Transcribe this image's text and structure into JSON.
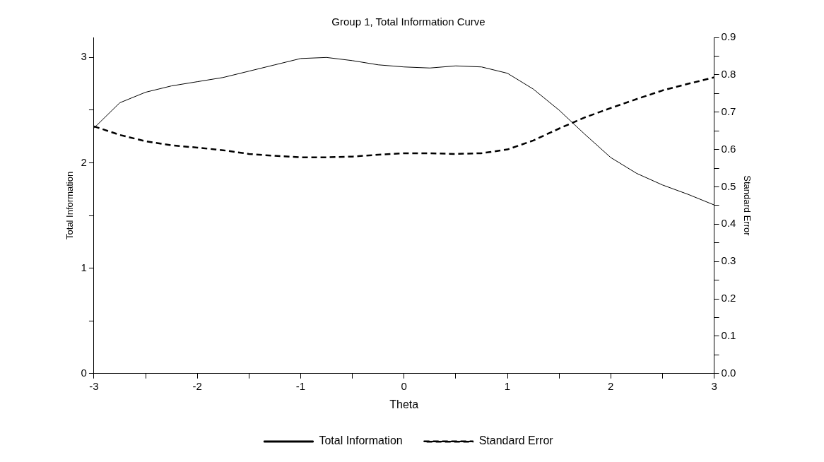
{
  "chart_data": {
    "type": "line",
    "title": "Group 1, Total Information Curve",
    "xlabel": "Theta",
    "ylabel": "Total Information",
    "y2label": "Standard Error",
    "x": [
      -3,
      -2.75,
      -2.5,
      -2.25,
      -2,
      -1.75,
      -1.5,
      -1.25,
      -1,
      -0.75,
      -0.5,
      -0.25,
      0,
      0.25,
      0.5,
      0.75,
      1,
      1.25,
      1.5,
      1.75,
      2,
      2.25,
      2.5,
      2.75,
      3
    ],
    "series": [
      {
        "name": "Total Information",
        "color": "#000000",
        "line_style": "solid",
        "values": [
          2.33,
          2.57,
          2.67,
          2.73,
          2.77,
          2.81,
          2.87,
          2.93,
          2.99,
          3.0,
          2.97,
          2.93,
          2.91,
          2.9,
          2.92,
          2.91,
          2.85,
          2.7,
          2.5,
          2.27,
          2.05,
          1.9,
          1.79,
          1.7,
          1.6
        ]
      },
      {
        "name": "Standard Error",
        "color": "#000000",
        "line_style": "dashed",
        "axis": "y2",
        "values": [
          0.662,
          0.639,
          0.622,
          0.611,
          0.605,
          0.598,
          0.588,
          0.583,
          0.579,
          0.579,
          0.581,
          0.586,
          0.59,
          0.59,
          0.588,
          0.59,
          0.6,
          0.624,
          0.656,
          0.686,
          0.711,
          0.735,
          0.758,
          0.776,
          0.793
        ]
      }
    ],
    "xlim": [
      -3,
      3
    ],
    "xticks": [
      -3,
      {
        "value": -2.5,
        "label": null
      },
      -2,
      {
        "value": -1.5,
        "label": null
      },
      -1,
      {
        "value": -0.5,
        "label": null
      },
      0,
      {
        "value": 0.5,
        "label": null
      },
      1,
      {
        "value": 1.5,
        "label": null
      },
      2,
      {
        "value": 2.5,
        "label": null
      },
      3
    ],
    "ylim": [
      0,
      3.19
    ],
    "yticks": [
      0,
      {
        "value": 0.5,
        "label": null
      },
      1,
      {
        "value": 1.5,
        "label": null
      },
      2,
      {
        "value": 2.5,
        "label": null
      },
      3
    ],
    "y2lim": [
      0,
      0.9
    ],
    "y2ticks": [
      {
        "value": 0,
        "label": "0.0"
      },
      {
        "value": 0.05,
        "label": null
      },
      0.1,
      {
        "value": 0.15,
        "label": null
      },
      0.2,
      {
        "value": 0.25,
        "label": null
      },
      0.3,
      {
        "value": 0.35,
        "label": null
      },
      0.4,
      {
        "value": 0.45,
        "label": null
      },
      0.5,
      {
        "value": 0.55,
        "label": null
      },
      0.6,
      {
        "value": 0.65,
        "label": null
      },
      0.7,
      {
        "value": 0.75,
        "label": null
      },
      0.8,
      {
        "value": 0.85,
        "label": null
      },
      0.9
    ],
    "grid": false,
    "legend": "bottom",
    "marker": "none"
  }
}
